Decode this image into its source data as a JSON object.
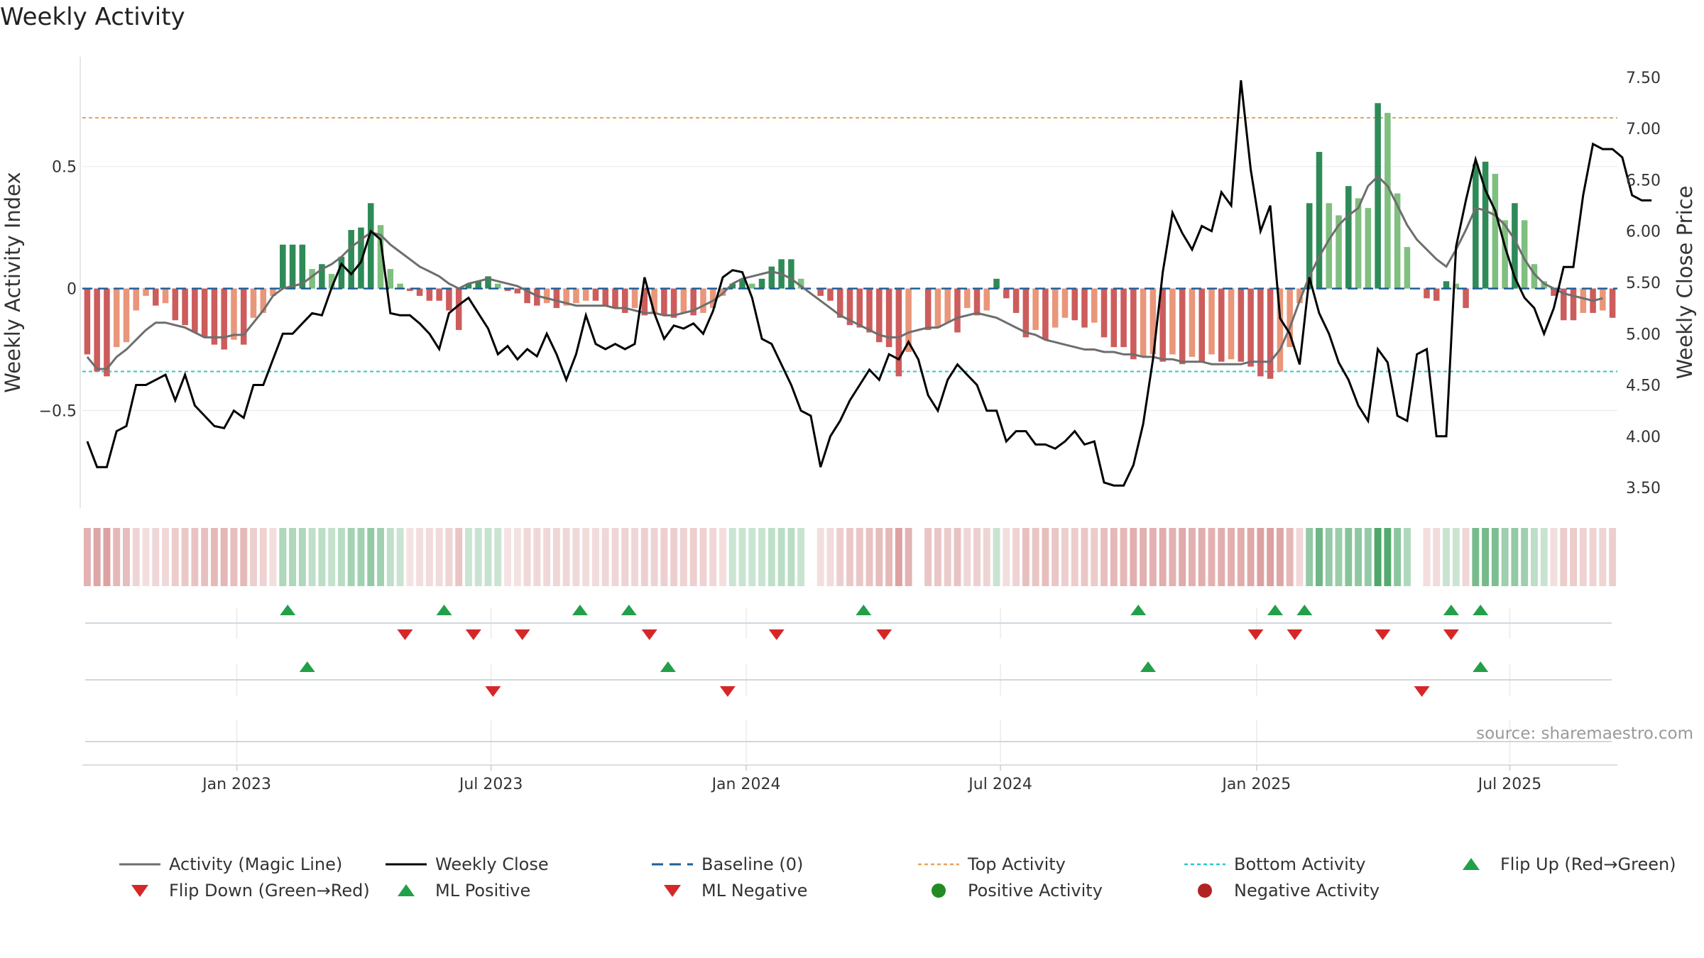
{
  "title": "Weekly Activity",
  "source_note": "source: sharemaestro.com",
  "colors": {
    "green_strong": "#2e8b57",
    "green_light": "#7fbf7f",
    "red_strong": "#cd5c5c",
    "red_light": "#e9967a",
    "magic_line": "#6e6e6e",
    "close_line": "#000000",
    "baseline": "#1f5f99",
    "top_line": "#e8a35a",
    "bottom_line": "#2ec8c8",
    "flip_up": "#22a049",
    "flip_down": "#d62728",
    "positive_dot": "#228b22",
    "negative_dot": "#b22222"
  },
  "chart_data": {
    "type": "bar",
    "title": "Weekly Activity",
    "ylabel": "Weekly Activity Index",
    "y2label": "Weekly Close Price",
    "ylim": [
      -0.9,
      0.95
    ],
    "y2lim": [
      3.3,
      7.7
    ],
    "yticks": [
      0.5,
      0,
      -0.5
    ],
    "yticklabels": [
      "0.5",
      "0",
      "−0.5"
    ],
    "y2ticks": [
      7.5,
      7.0,
      6.5,
      6.0,
      5.5,
      5.0,
      4.5,
      4.0,
      3.5
    ],
    "y2ticklabels": [
      "7.50",
      "7.00",
      "6.50",
      "6.00",
      "5.50",
      "5.00",
      "4.50",
      "4.00",
      "3.50"
    ],
    "xticklabels": [
      "Jan 2023",
      "Jul 2023",
      "Jan 2024",
      "Jul 2024",
      "Jan 2025",
      "Jul 2025"
    ],
    "xtick_weeks": [
      15.3,
      41.3,
      67.4,
      93.4,
      119.6,
      145.5
    ],
    "n_weeks": 157,
    "top_activity": 0.7,
    "bottom_activity": -0.34,
    "activity": [
      -0.27,
      -0.34,
      -0.36,
      -0.24,
      -0.22,
      -0.09,
      -0.03,
      -0.07,
      -0.06,
      -0.13,
      -0.15,
      -0.18,
      -0.2,
      -0.23,
      -0.25,
      -0.21,
      -0.23,
      -0.12,
      -0.1,
      -0.03,
      0.18,
      0.18,
      0.18,
      0.08,
      0.1,
      0.06,
      0.13,
      0.24,
      0.25,
      0.35,
      0.26,
      0.08,
      0.02,
      -0.01,
      -0.03,
      -0.05,
      -0.05,
      -0.09,
      -0.17,
      0.02,
      0.03,
      0.05,
      0.02,
      -0.01,
      -0.02,
      -0.06,
      -0.07,
      -0.06,
      -0.08,
      -0.07,
      -0.06,
      -0.05,
      -0.05,
      -0.07,
      -0.08,
      -0.1,
      -0.08,
      -0.11,
      -0.1,
      -0.11,
      -0.12,
      -0.1,
      -0.11,
      -0.1,
      -0.08,
      -0.03,
      0.02,
      0.04,
      0.02,
      0.04,
      0.09,
      0.12,
      0.12,
      0.04,
      0.0,
      -0.03,
      -0.05,
      -0.12,
      -0.15,
      -0.16,
      -0.18,
      -0.22,
      -0.24,
      -0.36,
      -0.26,
      0.0,
      -0.17,
      -0.16,
      -0.14,
      -0.18,
      -0.08,
      -0.11,
      -0.09,
      0.04,
      -0.04,
      -0.1,
      -0.2,
      -0.17,
      -0.21,
      -0.16,
      -0.12,
      -0.13,
      -0.16,
      -0.14,
      -0.2,
      -0.24,
      -0.24,
      -0.29,
      -0.28,
      -0.27,
      -0.3,
      -0.27,
      -0.31,
      -0.28,
      -0.3,
      -0.27,
      -0.3,
      -0.29,
      -0.3,
      -0.32,
      -0.36,
      -0.37,
      -0.34,
      -0.24,
      -0.06,
      0.35,
      0.56,
      0.35,
      0.3,
      0.42,
      0.37,
      0.33,
      0.76,
      0.72,
      0.39,
      0.17,
      0.0,
      -0.04,
      -0.05,
      0.03,
      0.02,
      -0.08,
      0.51,
      0.52,
      0.47,
      0.28,
      0.35,
      0.28,
      0.1,
      0.03,
      -0.03,
      -0.13,
      -0.13,
      -0.1,
      -0.1,
      -0.09,
      -0.12
    ],
    "magic_line": [
      -0.28,
      -0.33,
      -0.33,
      -0.28,
      -0.25,
      -0.21,
      -0.17,
      -0.14,
      -0.14,
      -0.15,
      -0.16,
      -0.18,
      -0.2,
      -0.2,
      -0.2,
      -0.19,
      -0.19,
      -0.14,
      -0.09,
      -0.03,
      0.0,
      0.01,
      0.02,
      0.05,
      0.08,
      0.1,
      0.13,
      0.17,
      0.2,
      0.23,
      0.22,
      0.18,
      0.15,
      0.12,
      0.09,
      0.07,
      0.05,
      0.02,
      0.0,
      0.02,
      0.03,
      0.04,
      0.03,
      0.02,
      0.01,
      -0.01,
      -0.03,
      -0.04,
      -0.05,
      -0.06,
      -0.07,
      -0.07,
      -0.07,
      -0.07,
      -0.08,
      -0.08,
      -0.09,
      -0.1,
      -0.1,
      -0.11,
      -0.11,
      -0.1,
      -0.09,
      -0.07,
      -0.05,
      -0.02,
      0.02,
      0.04,
      0.05,
      0.06,
      0.07,
      0.06,
      0.04,
      0.01,
      -0.02,
      -0.05,
      -0.08,
      -0.11,
      -0.13,
      -0.15,
      -0.17,
      -0.19,
      -0.2,
      -0.2,
      -0.18,
      -0.17,
      -0.16,
      -0.16,
      -0.14,
      -0.12,
      -0.11,
      -0.1,
      -0.11,
      -0.12,
      -0.14,
      -0.16,
      -0.18,
      -0.19,
      -0.21,
      -0.22,
      -0.23,
      -0.24,
      -0.25,
      -0.25,
      -0.26,
      -0.26,
      -0.27,
      -0.27,
      -0.28,
      -0.28,
      -0.29,
      -0.29,
      -0.3,
      -0.3,
      -0.3,
      -0.31,
      -0.31,
      -0.31,
      -0.31,
      -0.3,
      -0.3,
      -0.3,
      -0.25,
      -0.16,
      -0.05,
      0.05,
      0.13,
      0.2,
      0.26,
      0.3,
      0.33,
      0.42,
      0.46,
      0.42,
      0.34,
      0.26,
      0.2,
      0.16,
      0.12,
      0.09,
      0.16,
      0.24,
      0.33,
      0.32,
      0.3,
      0.26,
      0.2,
      0.12,
      0.06,
      0.02,
      0.0,
      -0.02,
      -0.03,
      -0.04,
      -0.05,
      -0.04
    ],
    "weekly_close": [
      3.95,
      3.7,
      3.7,
      4.05,
      4.1,
      4.5,
      4.5,
      4.55,
      4.6,
      4.35,
      4.6,
      4.3,
      4.2,
      4.1,
      4.08,
      4.25,
      4.18,
      4.5,
      4.5,
      4.75,
      5.0,
      5.0,
      5.1,
      5.2,
      5.18,
      5.45,
      5.68,
      5.58,
      5.7,
      6.0,
      5.92,
      5.2,
      5.18,
      5.18,
      5.1,
      5.0,
      4.85,
      5.2,
      5.28,
      5.35,
      5.2,
      5.05,
      4.8,
      4.88,
      4.75,
      4.85,
      4.78,
      5.0,
      4.8,
      4.55,
      4.8,
      5.18,
      4.9,
      4.85,
      4.9,
      4.85,
      4.9,
      5.55,
      5.2,
      4.95,
      5.08,
      5.05,
      5.1,
      5.0,
      5.22,
      5.55,
      5.62,
      5.6,
      5.35,
      4.95,
      4.9,
      4.7,
      4.5,
      4.25,
      4.2,
      3.7,
      4.0,
      4.15,
      4.35,
      4.5,
      4.65,
      4.55,
      4.8,
      4.75,
      4.92,
      4.75,
      4.4,
      4.25,
      4.55,
      4.7,
      4.6,
      4.5,
      4.25,
      4.25,
      3.95,
      4.05,
      4.05,
      3.92,
      3.92,
      3.88,
      3.95,
      4.05,
      3.92,
      3.95,
      3.55,
      3.52,
      3.52,
      3.72,
      4.12,
      4.75,
      5.6,
      6.18,
      5.98,
      5.82,
      6.05,
      6.0,
      6.38,
      6.25,
      7.47,
      6.6,
      6.0,
      6.25,
      5.15,
      5.0,
      4.7,
      5.55,
      5.2,
      5.0,
      4.72,
      4.55,
      4.3,
      4.15,
      4.85,
      4.72,
      4.2,
      4.15,
      4.8,
      4.85,
      4.0,
      4.0,
      5.85,
      6.3,
      6.7,
      6.4,
      6.2,
      5.85,
      5.55,
      5.35,
      5.25,
      5.0,
      5.25,
      5.65,
      5.65,
      6.35,
      6.85,
      6.8,
      6.8,
      6.72,
      6.35,
      6.3,
      6.3
    ],
    "heat_strip": "per-week intensity band mirroring activity sign and magnitude",
    "flip_up_weeks": [
      20.5,
      36.5,
      50.4,
      55.4,
      79.4,
      107.5,
      121.5,
      124.5,
      139.5,
      142.5
    ],
    "flip_down_weeks": [
      32.5,
      39.5,
      44.5,
      57.5,
      70.5,
      81.5,
      119.5,
      123.5,
      132.5,
      139.5
    ],
    "ml_positive_weeks": [
      22.5,
      59.4,
      108.5,
      142.5
    ],
    "ml_negative_weeks": [
      41.5,
      65.5,
      136.5
    ],
    "legend": [
      {
        "label": "Activity (Magic Line)",
        "kind": "line",
        "color": "#6e6e6e"
      },
      {
        "label": "Weekly Close",
        "kind": "line",
        "color": "#000000"
      },
      {
        "label": "Baseline (0)",
        "kind": "dash",
        "color": "#1f5f99"
      },
      {
        "label": "Top Activity",
        "kind": "dot-line",
        "color": "#e8a35a"
      },
      {
        "label": "Bottom Activity",
        "kind": "dot-line",
        "color": "#2ec8c8"
      },
      {
        "label": "Flip Up (Red→Green)",
        "kind": "tri-up",
        "color": "#22a049"
      },
      {
        "label": "Flip Down (Green→Red)",
        "kind": "tri-down",
        "color": "#d62728"
      },
      {
        "label": "ML Positive",
        "kind": "tri-up",
        "color": "#22a049"
      },
      {
        "label": "ML Negative",
        "kind": "tri-down",
        "color": "#d62728"
      },
      {
        "label": "Positive Activity",
        "kind": "circle",
        "color": "#228b22"
      },
      {
        "label": "Negative Activity",
        "kind": "circle",
        "color": "#b22222"
      }
    ]
  }
}
